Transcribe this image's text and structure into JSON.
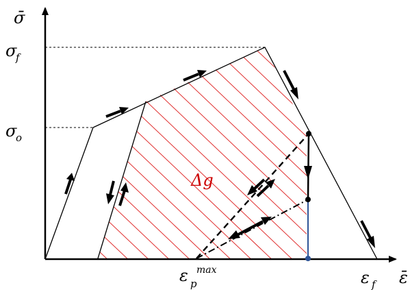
{
  "axes": {
    "y_label": "σ̄",
    "x_label": "ε̄"
  },
  "levels": {
    "sigma_f": {
      "base": "σ",
      "sub": "f"
    },
    "sigma_o": {
      "base": "σ",
      "sub": "o"
    }
  },
  "strains": {
    "eps_p_max": {
      "base": "ε",
      "sub": "p",
      "sup": "max"
    },
    "eps_f": {
      "base": "ε",
      "sub": "f"
    }
  },
  "region_label": "Δg",
  "colors": {
    "ink": "#000000",
    "hatch": "#e03030",
    "region_label": "#cc0000",
    "blue_line": "#2f5597"
  }
}
